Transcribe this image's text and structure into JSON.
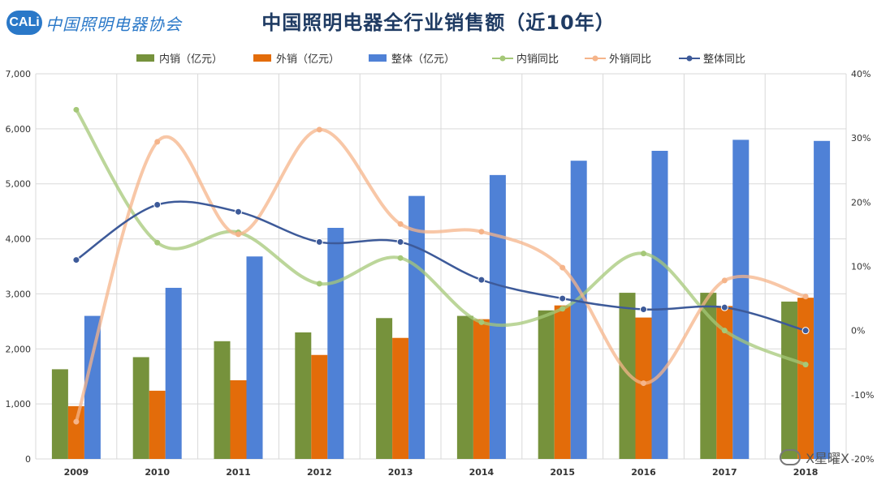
{
  "header": {
    "logo_mark": "CALi",
    "logo_text": "中国照明电器协会"
  },
  "watermark": "X星曜X",
  "chart_data": {
    "type": "bar",
    "title": "中国照明电器全行业销售额（近10年）",
    "categories": [
      "2009",
      "2010",
      "2011",
      "2012",
      "2013",
      "2014",
      "2015",
      "2016",
      "2017",
      "2018"
    ],
    "y_left": {
      "min": 0,
      "max": 7000,
      "step": 1000
    },
    "y_right": {
      "min": -20,
      "max": 40,
      "step": 10,
      "unit": "%"
    },
    "series": [
      {
        "name": "内销（亿元）",
        "type": "bar",
        "axis": "left",
        "color": "#76923c",
        "values": [
          1630,
          1850,
          2140,
          2300,
          2560,
          2600,
          2700,
          3020,
          3020,
          2860
        ]
      },
      {
        "name": "外销（亿元）",
        "type": "bar",
        "axis": "left",
        "color": "#e36c0a",
        "values": [
          960,
          1240,
          1430,
          1890,
          2200,
          2540,
          2790,
          2570,
          2780,
          2930
        ]
      },
      {
        "name": "整体（亿元）",
        "type": "bar",
        "axis": "left",
        "color": "#4f81d6",
        "values": [
          2600,
          3110,
          3680,
          4200,
          4780,
          5160,
          5420,
          5600,
          5800,
          5780
        ]
      },
      {
        "name": "内销同比",
        "type": "line",
        "axis": "right",
        "color": "#a5c878",
        "values": [
          34.4,
          13.7,
          15.3,
          7.3,
          11.3,
          1.3,
          3.4,
          12.0,
          0,
          -5.3
        ]
      },
      {
        "name": "外销同比",
        "type": "line",
        "axis": "right",
        "color": "#f5b48a",
        "values": [
          -14.2,
          29.4,
          15.0,
          31.3,
          16.6,
          15.4,
          9.8,
          -8.2,
          7.8,
          5.3
        ]
      },
      {
        "name": "整体同比",
        "type": "line",
        "axis": "right",
        "color": "#3d5a99",
        "values": [
          11.0,
          19.6,
          18.5,
          13.8,
          13.8,
          7.9,
          5.0,
          3.3,
          3.6,
          0
        ]
      }
    ],
    "left_tick_labels": [
      "0",
      "1,000",
      "2,000",
      "3,000",
      "4,000",
      "5,000",
      "6,000",
      "7,000"
    ],
    "right_tick_labels": [
      "-20%",
      "-10%",
      "0%",
      "10%",
      "20%",
      "30%",
      "40%"
    ],
    "legend_position": "top"
  }
}
